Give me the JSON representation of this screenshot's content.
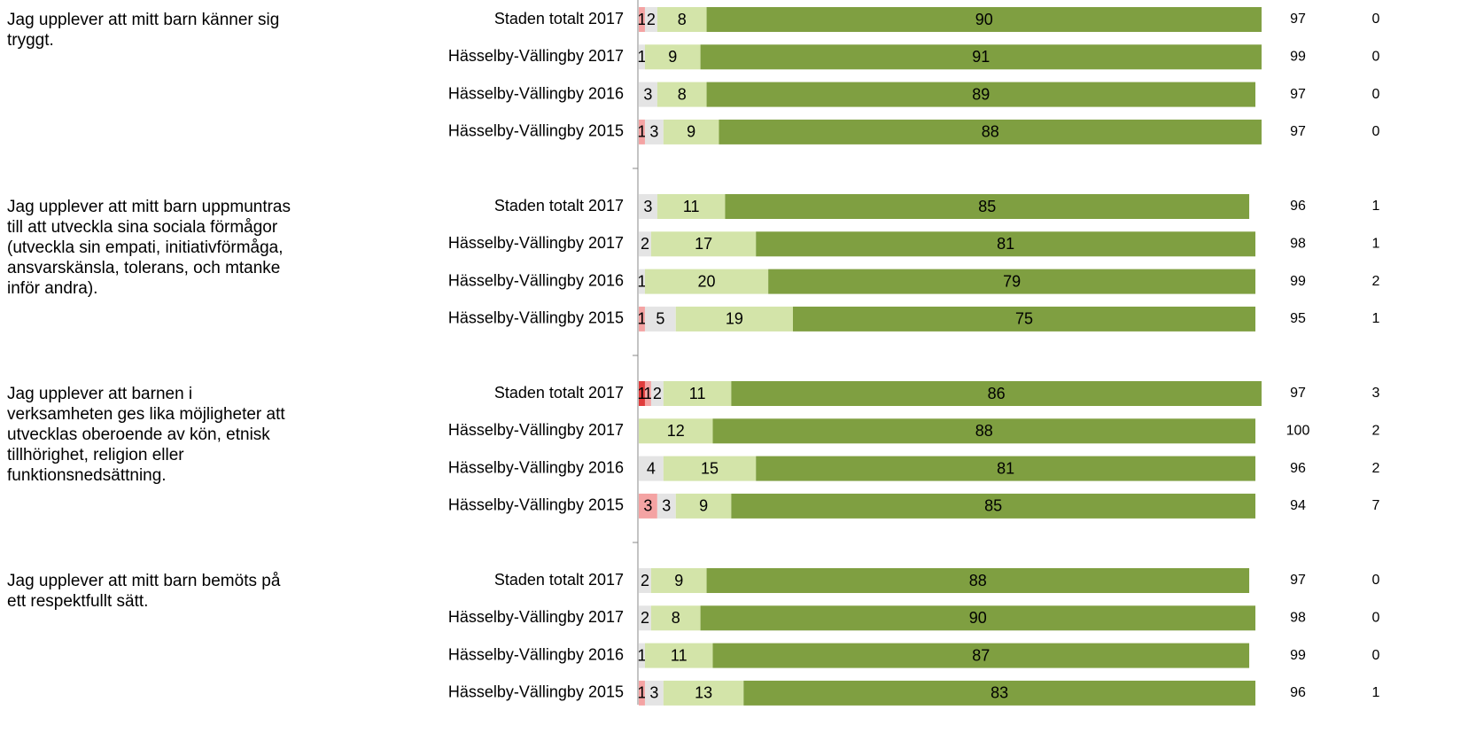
{
  "chart_data": {
    "type": "bar",
    "orientation": "horizontal",
    "stacked": true,
    "xlim": [
      0,
      100
    ],
    "groups": [
      {
        "title_lines": [
          "Jag upplever att mitt barn känner sig",
          "tryggt."
        ]
      },
      {
        "title_lines": [
          "Jag upplever att mitt barn uppmuntras",
          "till att utveckla sina sociala förmågor",
          "(utveckla sin empati, initiativförmåga,",
          "ansvarskänsla, tolerans, och mtanke",
          "inför andra)."
        ]
      },
      {
        "title_lines": [
          "Jag upplever att barnen i",
          "verksamheten ges lika möjligheter att",
          "utvecklas oberoende av kön, etnisk",
          "tillhörighet, religion eller",
          "funktionsnedsättning."
        ]
      },
      {
        "title_lines": [
          "Jag upplever att mitt barn bemöts på",
          "ett respektfullt sätt."
        ]
      }
    ],
    "categories": [
      "Staden totalt 2017",
      "Hässelby-Vällingby 2017",
      "Hässelby-Vällingby 2016",
      "Hässelby-Vällingby 2015",
      "Staden totalt 2017",
      "Hässelby-Vällingby 2017",
      "Hässelby-Vällingby 2016",
      "Hässelby-Vällingby 2015",
      "Staden totalt 2017",
      "Hässelby-Vällingby 2017",
      "Hässelby-Vällingby 2016",
      "Hässelby-Vällingby 2015",
      "Staden totalt 2017",
      "Hässelby-Vällingby 2017",
      "Hässelby-Vällingby 2016",
      "Hässelby-Vällingby 2015"
    ],
    "series": [
      {
        "color": "#e03c3c",
        "values": [
          0,
          null,
          null,
          null,
          0,
          null,
          null,
          null,
          1,
          null,
          null,
          null,
          0,
          null,
          null,
          null
        ]
      },
      {
        "color": "#f4a3a3",
        "values": [
          1,
          null,
          null,
          1,
          0,
          null,
          null,
          1,
          1,
          null,
          null,
          3,
          0,
          null,
          null,
          1
        ]
      },
      {
        "color": "#e4e4e4",
        "values": [
          2,
          1,
          3,
          3,
          3,
          2,
          1,
          5,
          2,
          null,
          4,
          3,
          2,
          2,
          1,
          3
        ]
      },
      {
        "color": "#d3e4a9",
        "values": [
          8,
          9,
          8,
          9,
          11,
          17,
          20,
          19,
          11,
          12,
          15,
          9,
          9,
          8,
          11,
          13
        ]
      },
      {
        "color": "#7f9f41",
        "values": [
          90,
          91,
          89,
          88,
          85,
          81,
          79,
          75,
          86,
          88,
          81,
          85,
          88,
          90,
          87,
          83
        ]
      }
    ],
    "positive": [
      97,
      99,
      97,
      97,
      96,
      98,
      99,
      95,
      97,
      100,
      96,
      94,
      97,
      98,
      99,
      96
    ],
    "unknown": [
      0,
      0,
      0,
      0,
      1,
      1,
      2,
      1,
      3,
      2,
      2,
      7,
      0,
      0,
      0,
      1
    ]
  }
}
